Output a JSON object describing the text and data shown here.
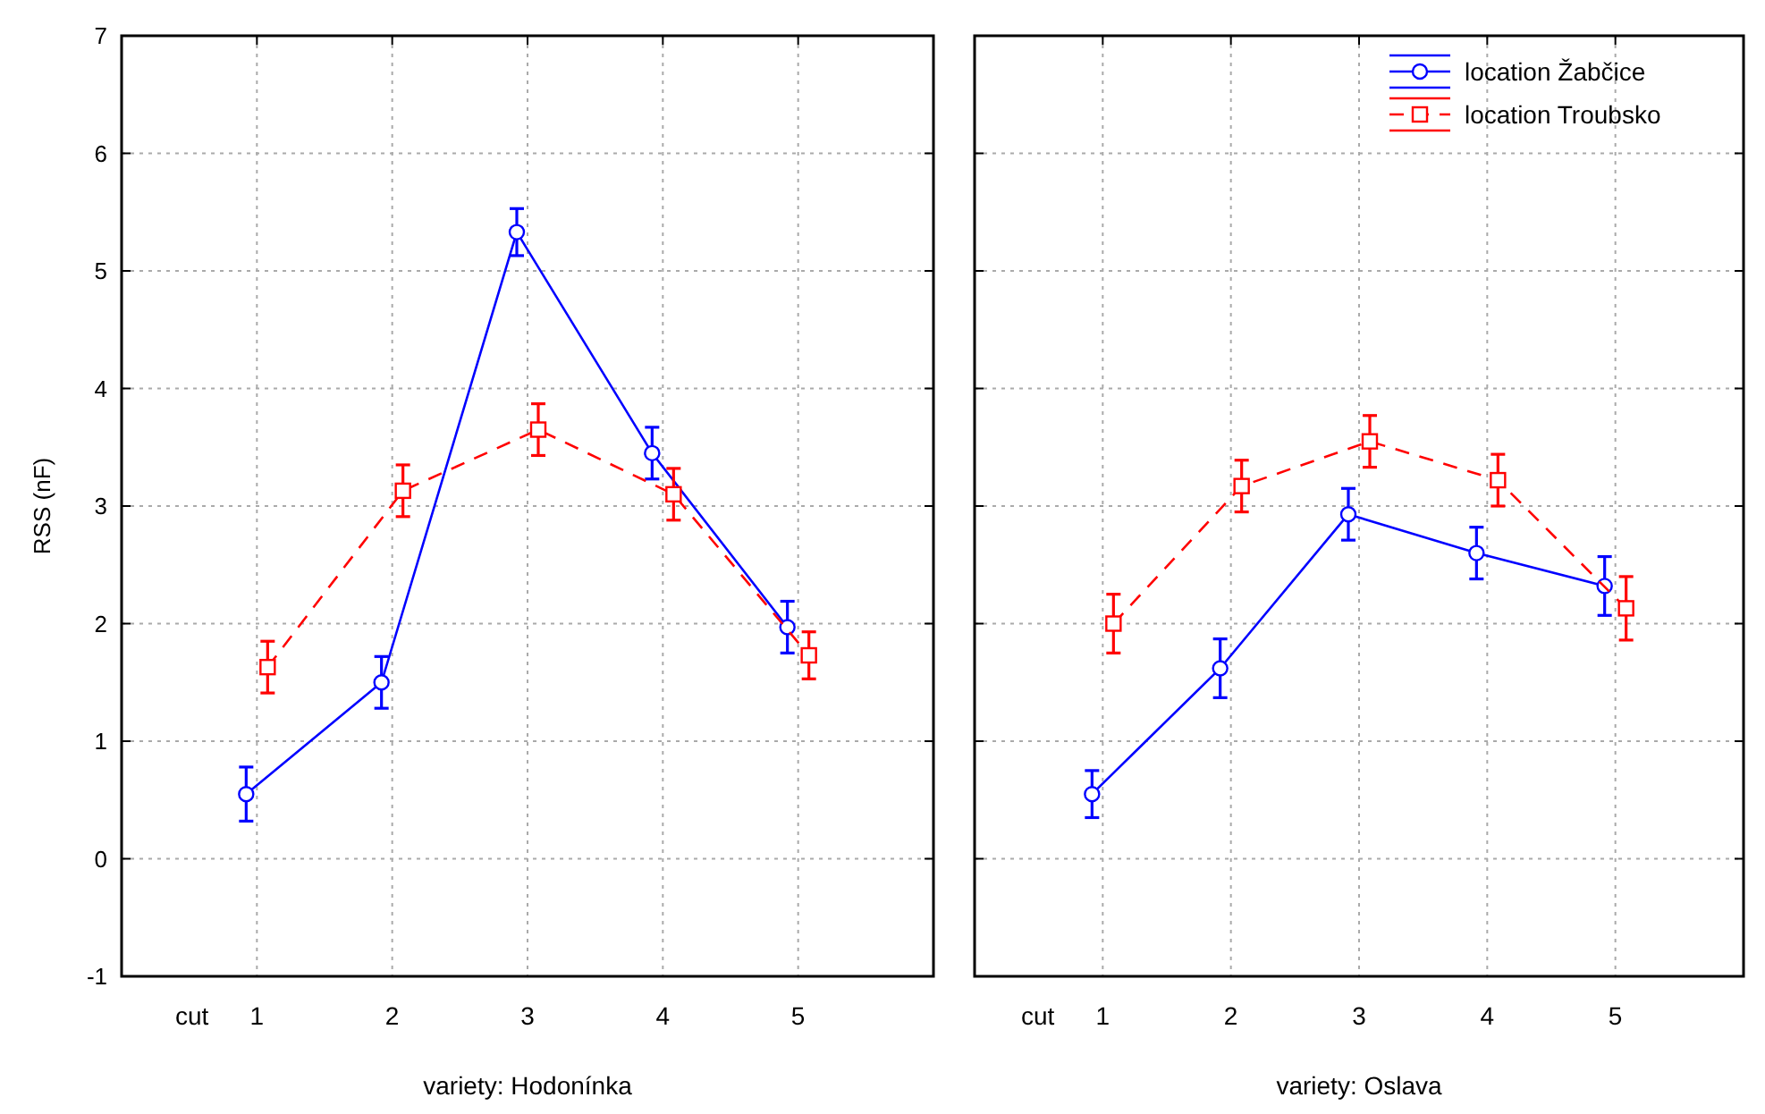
{
  "chart_data": [
    {
      "type": "line",
      "xlabel": "cut",
      "ylabel": "RSS (nF)",
      "annotations": [
        "variety: Hodonínka"
      ],
      "categories": [
        "1",
        "2",
        "3",
        "4",
        "5"
      ],
      "ylim": [
        -1,
        7
      ],
      "yticks": [
        -1,
        0,
        1,
        2,
        3,
        4,
        5,
        6,
        7
      ],
      "grid": true,
      "legend": false,
      "series": [
        {
          "color": "#0000ff",
          "marker": "circle",
          "line_style": "solid",
          "values": [
            0.55,
            1.5,
            5.33,
            3.45,
            1.97
          ],
          "errors": [
            0.23,
            0.22,
            0.2,
            0.22,
            0.22
          ]
        },
        {
          "color": "#ff0000",
          "marker": "square",
          "line_style": "dashed",
          "values": [
            1.63,
            3.13,
            3.65,
            3.1,
            1.73
          ],
          "errors": [
            0.22,
            0.22,
            0.22,
            0.22,
            0.2
          ]
        }
      ]
    },
    {
      "type": "line",
      "xlabel": "cut",
      "annotations": [
        "variety: Oslava"
      ],
      "categories": [
        "1",
        "2",
        "3",
        "4",
        "5"
      ],
      "ylim": [
        -1,
        7
      ],
      "yticks": [
        -1,
        0,
        1,
        2,
        3,
        4,
        5,
        6,
        7
      ],
      "grid": true,
      "legend": "top right",
      "tick_labels": "x",
      "series": [
        {
          "name": "location Žabčice",
          "color": "#0000ff",
          "marker": "circle",
          "line_style": "solid",
          "values": [
            0.55,
            1.62,
            2.93,
            2.6,
            2.32
          ],
          "errors": [
            0.2,
            0.25,
            0.22,
            0.22,
            0.25
          ]
        },
        {
          "name": "location Troubsko",
          "color": "#ff0000",
          "marker": "square",
          "line_style": "dashed",
          "values": [
            2.0,
            3.17,
            3.55,
            3.22,
            2.13
          ],
          "errors": [
            0.25,
            0.22,
            0.22,
            0.22,
            0.27
          ]
        }
      ]
    }
  ]
}
